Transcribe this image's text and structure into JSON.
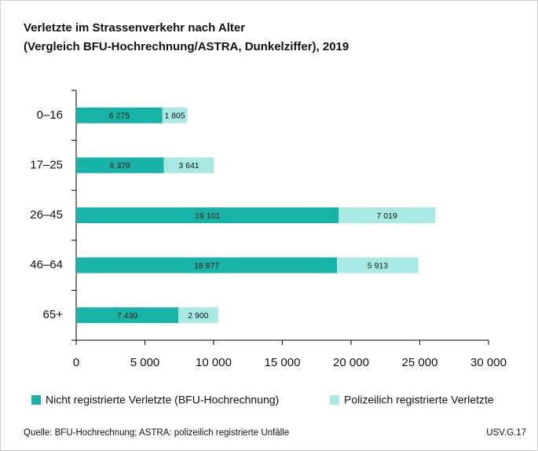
{
  "chart_data": {
    "type": "stacked-barh",
    "title": "Verletzte im Strassenverkehr nach Alter",
    "subtitle": "(Vergleich BFU-Hochrechnung/ASTRA, Dunkelziffer), 2019",
    "categories": [
      "0–16",
      "17–25",
      "26–45",
      "46–64",
      "65+"
    ],
    "series": [
      {
        "name": "Nicht registrierte Verletzte (BFU-Hochrechnung)",
        "color": "#17b3a6",
        "values": [
          6275,
          6379,
          19101,
          18977,
          7430
        ],
        "value_labels": [
          "6 275",
          "6 379",
          "19 101",
          "18 977",
          "7 430"
        ]
      },
      {
        "name": "Polizeilich registrierte Verletzte",
        "color": "#a8e9e4",
        "values": [
          1805,
          3641,
          7019,
          5913,
          2900
        ],
        "value_labels": [
          "1 805",
          "3 641",
          "7 019",
          "5 913",
          "2 900"
        ]
      }
    ],
    "xlim": [
      0,
      30000
    ],
    "xticks": [
      0,
      {
        "value": 5000,
        "label": "5 000"
      },
      {
        "value": 10000,
        "label": "10 000"
      },
      {
        "value": 15000,
        "label": "15 000"
      },
      {
        "value": 20000,
        "label": "20 000"
      },
      {
        "value": 25000,
        "label": "25 000"
      },
      {
        "value": 30000,
        "label": "30 000"
      }
    ],
    "source": "Quelle: BFU-Hochrechnung; ASTRA: polizeilich registrierte Unfälle",
    "note": "USV.G.17"
  }
}
